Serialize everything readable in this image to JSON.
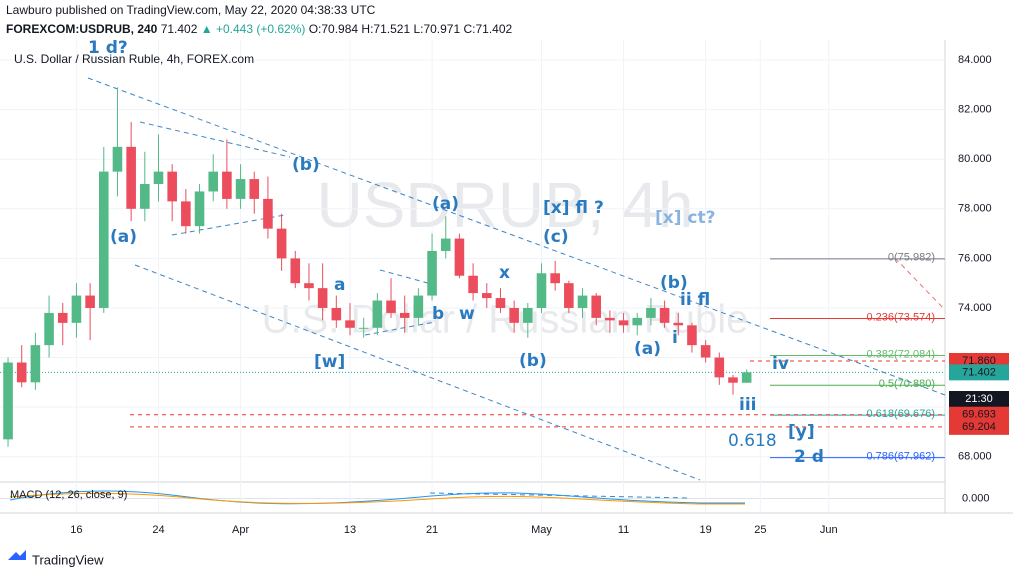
{
  "header": {
    "publisher": "Lawburo published on TradingView.com, May 22, 2020 04:38:33 UTC",
    "symbol": "FOREXCOM:USDRUB, 240",
    "last": "71.402",
    "change": "▲ +0.443 (+0.62%)",
    "ohlc": "O:70.984 H:71.521 L:70.971 C:71.402"
  },
  "footer": {
    "brand": "TradingView"
  },
  "chart_data": {
    "type": "candlestick",
    "title": "U.S. Dollar / Russian Ruble, 4h, FOREX.com",
    "watermark": [
      "USDRUB, 4h",
      "U.S. Dollar / Russian Ruble"
    ],
    "categories": [
      null,
      null,
      null,
      null,
      null,
      "16",
      null,
      null,
      null,
      null,
      null,
      "24",
      null,
      null,
      null,
      null,
      null,
      "Apr",
      null,
      null,
      null,
      null,
      null,
      null,
      null,
      "13",
      null,
      null,
      null,
      null,
      null,
      "21",
      null,
      null,
      null,
      null,
      null,
      null,
      null,
      "May",
      null,
      null,
      null,
      null,
      null,
      "11",
      null,
      null,
      null,
      null,
      null,
      "19",
      null,
      null,
      null,
      "25",
      null,
      null,
      null,
      null,
      "Jun",
      null,
      null,
      null,
      null,
      null,
      null,
      null,
      null
    ],
    "open": [
      68.7,
      71.8,
      71.0,
      72.5,
      73.8,
      73.4,
      74.5,
      74.0,
      79.5,
      80.5,
      78.0,
      79.0,
      79.5,
      78.3,
      77.3,
      78.7,
      79.5,
      78.4,
      79.2,
      78.4,
      77.2,
      76.0,
      75.0,
      74.8,
      74.0,
      73.5,
      73.2,
      73.2,
      74.3,
      73.8,
      73.6,
      74.5,
      76.3,
      76.8,
      75.3,
      74.6,
      74.4,
      74.0,
      73.4,
      74.0,
      75.4,
      75.0,
      74.0,
      74.5,
      73.6,
      73.5,
      73.3,
      73.6,
      74.0,
      73.4,
      73.3,
      72.5,
      72.0,
      71.2,
      70.984,
      null,
      null,
      null,
      null,
      null,
      null,
      null,
      null,
      null,
      null,
      null,
      null,
      null,
      null
    ],
    "high": [
      72,
      72.5,
      73,
      74.5,
      74.2,
      75,
      75,
      80.5,
      82.9,
      81.5,
      80.3,
      81,
      79.8,
      78.8,
      79,
      80.2,
      80.8,
      79.8,
      79.5,
      79.3,
      77.8,
      76.3,
      75.8,
      75.8,
      74.5,
      74.2,
      73.6,
      74.6,
      75.2,
      74.5,
      74.8,
      77,
      77.7,
      77,
      75.8,
      75,
      74.8,
      74.3,
      74.2,
      75.8,
      75.9,
      75.1,
      74.8,
      74.6,
      73.9,
      73.8,
      73.8,
      74.4,
      74.3,
      73.8,
      73.4,
      72.7,
      72.2,
      71.3,
      71.521,
      null,
      null,
      null,
      null,
      null,
      null,
      null,
      null,
      null,
      null,
      null,
      null,
      null,
      null
    ],
    "low": [
      68.4,
      70.8,
      70.7,
      72,
      72.5,
      72.8,
      72.7,
      73.8,
      78.5,
      77.5,
      77.5,
      78.3,
      77.5,
      77,
      77,
      78.3,
      78,
      78,
      77.8,
      76.8,
      75.5,
      74.8,
      74.3,
      73.5,
      73.2,
      72.9,
      72.8,
      72.9,
      73.6,
      73,
      73.3,
      74.3,
      76,
      75.2,
      74.3,
      74,
      73.8,
      73,
      72.8,
      73.8,
      74.7,
      73.8,
      73.6,
      73.3,
      73,
      73,
      72.9,
      73.3,
      73.2,
      72.9,
      72.2,
      71.8,
      70.9,
      70.5,
      70.971,
      null,
      null,
      null,
      null,
      null,
      null,
      null,
      null,
      null,
      null,
      null,
      null,
      null,
      null
    ],
    "close": [
      71.8,
      71,
      72.5,
      73.8,
      73.4,
      74.5,
      74,
      79.5,
      80.5,
      78,
      79,
      79.5,
      78.3,
      77.3,
      78.7,
      79.5,
      78.4,
      79.2,
      78.4,
      77.2,
      76,
      75,
      74.8,
      74,
      73.5,
      73.2,
      73.2,
      74.3,
      73.8,
      73.6,
      74.5,
      76.3,
      76.8,
      75.3,
      74.6,
      74.4,
      74,
      73.4,
      74,
      75.4,
      75,
      74,
      74.5,
      73.6,
      73.5,
      73.3,
      73.6,
      74,
      73.4,
      73.3,
      72.5,
      72,
      71.2,
      70.984,
      71.402,
      null,
      null,
      null,
      null,
      null,
      null,
      null,
      null,
      null,
      null,
      null,
      null,
      null,
      null
    ],
    "up_color": "#53b987",
    "down_color": "#eb4d5c",
    "ylim": [
      67.06,
      84.81
    ],
    "yticks": [
      {
        "value": 84,
        "label": "84.000"
      },
      {
        "value": 82,
        "label": "82.000"
      },
      {
        "value": 80,
        "label": "80.000"
      },
      {
        "value": 78,
        "label": "78.000"
      },
      {
        "value": 76,
        "label": "76.000"
      },
      {
        "value": 74,
        "label": "74.000"
      },
      {
        "value": 72,
        "label": "72.000"
      },
      {
        "value": 70,
        "label": "70.000"
      },
      {
        "value": 68,
        "label": "68.000"
      }
    ],
    "fib_levels": [
      {
        "value": 75.982,
        "label": "0(75.982)",
        "color": "#787b86"
      },
      {
        "value": 73.574,
        "label": "0.236(73.574)",
        "color": "#e53935"
      },
      {
        "value": 72.084,
        "label": "0.382(72.084)",
        "color": "#66bb6a"
      },
      {
        "value": 70.88,
        "label": "0.5(70.880)",
        "color": "#4caf50"
      },
      {
        "value": 69.676,
        "label": "0.618(69.676)",
        "color": "#26a69a"
      },
      {
        "value": 67.962,
        "label": "0.786(67.962)",
        "color": "#2962ff"
      }
    ],
    "price_lines": [
      {
        "value": 71.86,
        "label": "71.860",
        "color": "#e53935"
      },
      {
        "value": 71.402,
        "label": "71.402",
        "color": "#26a69a"
      },
      {
        "value": 69.693,
        "label": "69.693",
        "color": "#e53935"
      },
      {
        "value": 69.204,
        "label": "69.204",
        "color": "#e53935"
      }
    ],
    "countdown": "21:30",
    "annotations": [
      "1 d?",
      "(a)",
      "(b)",
      "(a)",
      "[x] fl ?",
      "(c)",
      "[x] ct?",
      "a",
      "x",
      "b",
      "w",
      "[w]",
      "(b)",
      "(b)",
      "ii fl",
      "(a)",
      "i",
      "iv",
      "iii",
      "[y]",
      "0.618",
      "2 d"
    ],
    "macd": {
      "label": "MACD (12, 26, close, 9)",
      "ylim": [
        -0.25,
        0.25
      ],
      "yticks": [
        {
          "value": 0,
          "label": "0.000"
        }
      ]
    }
  }
}
